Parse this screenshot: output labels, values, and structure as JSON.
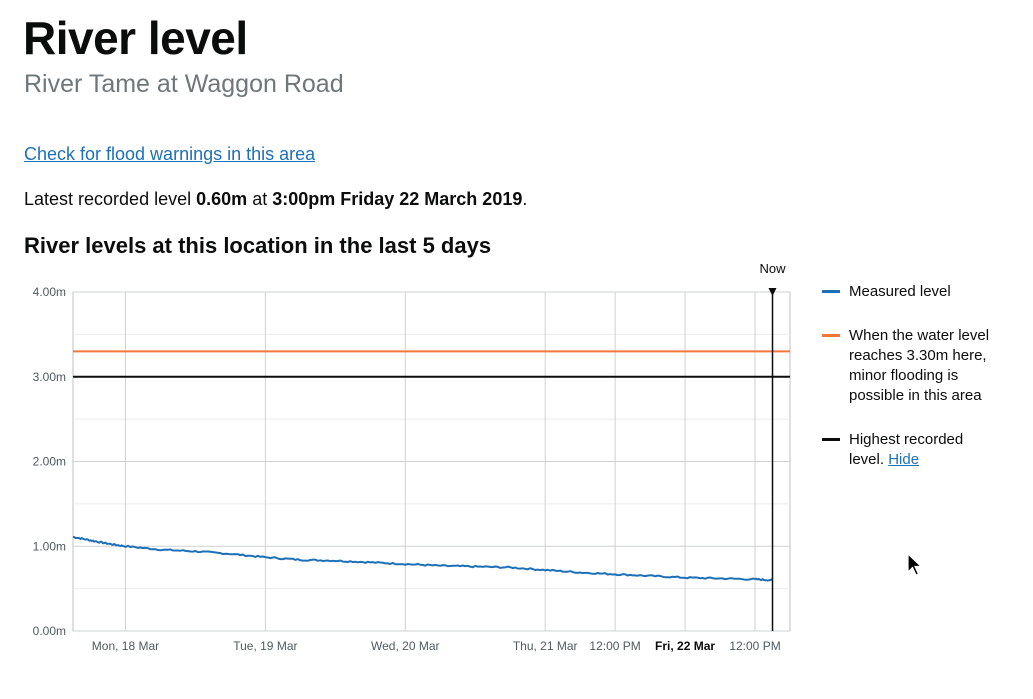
{
  "page": {
    "title": "River level",
    "subtitle": "River Tame at Waggon Road",
    "flood_warnings_link": "Check for flood warnings in this area",
    "latest": {
      "prefix": "Latest recorded level",
      "value": "0.60m",
      "mid": "at",
      "time": "3:00pm Friday 22 March 2019",
      "suffix": "."
    },
    "chart_heading": "River levels at this location in the last 5 days"
  },
  "legend": {
    "measured": "Measured level",
    "threshold": "When the water level reaches 3.30m here, minor flooding is possible in this area",
    "highest": "Highest recorded level.",
    "hide_link": "Hide"
  },
  "colors": {
    "measured": "#1d70b8",
    "threshold": "#f47738",
    "highest": "#0b0c0c",
    "link": "#1d70b8"
  },
  "chart_data": {
    "type": "line",
    "title": "River levels at this location in the last 5 days",
    "y_range": [
      0,
      4
    ],
    "y_ticks": [
      {
        "value": 0,
        "label": "0.00m"
      },
      {
        "value": 1,
        "label": "1.00m"
      },
      {
        "value": 2,
        "label": "2.00m"
      },
      {
        "value": 3,
        "label": "3.00m"
      },
      {
        "value": 4,
        "label": "4.00m"
      }
    ],
    "x_range": [
      "2019-03-17T15:00",
      "2019-03-22T18:00"
    ],
    "x_ticks": [
      {
        "value": "2019-03-18T00:00",
        "label": "Mon, 18 Mar",
        "bold": false
      },
      {
        "value": "2019-03-19T00:00",
        "label": "Tue, 19 Mar",
        "bold": false
      },
      {
        "value": "2019-03-20T00:00",
        "label": "Wed, 20 Mar",
        "bold": false
      },
      {
        "value": "2019-03-21T00:00",
        "label": "Thu, 21 Mar",
        "bold": false
      },
      {
        "value": "2019-03-21T12:00",
        "label": "12:00 PM",
        "bold": false
      },
      {
        "value": "2019-03-22T00:00",
        "label": "Fri, 22 Mar",
        "bold": true
      },
      {
        "value": "2019-03-22T12:00",
        "label": "12:00 PM",
        "bold": false
      }
    ],
    "now": {
      "value": "2019-03-22T15:00",
      "label": "Now"
    },
    "reference_lines": [
      {
        "name": "threshold",
        "value": 3.3
      },
      {
        "name": "highest",
        "value": 3.0
      }
    ],
    "grid": true,
    "series": [
      {
        "name": "Measured level",
        "points": [
          {
            "x": "2019-03-17T15:00",
            "y": 1.11
          },
          {
            "x": "2019-03-17T18:00",
            "y": 1.07
          },
          {
            "x": "2019-03-17T21:00",
            "y": 1.03
          },
          {
            "x": "2019-03-18T00:00",
            "y": 1.0
          },
          {
            "x": "2019-03-18T06:00",
            "y": 0.96
          },
          {
            "x": "2019-03-18T12:00",
            "y": 0.94
          },
          {
            "x": "2019-03-18T18:00",
            "y": 0.91
          },
          {
            "x": "2019-03-19T00:00",
            "y": 0.87
          },
          {
            "x": "2019-03-19T06:00",
            "y": 0.84
          },
          {
            "x": "2019-03-19T12:00",
            "y": 0.83
          },
          {
            "x": "2019-03-19T18:00",
            "y": 0.81
          },
          {
            "x": "2019-03-20T00:00",
            "y": 0.79
          },
          {
            "x": "2019-03-20T06:00",
            "y": 0.77
          },
          {
            "x": "2019-03-20T12:00",
            "y": 0.76
          },
          {
            "x": "2019-03-20T18:00",
            "y": 0.75
          },
          {
            "x": "2019-03-21T00:00",
            "y": 0.72
          },
          {
            "x": "2019-03-21T06:00",
            "y": 0.69
          },
          {
            "x": "2019-03-21T12:00",
            "y": 0.67
          },
          {
            "x": "2019-03-21T18:00",
            "y": 0.65
          },
          {
            "x": "2019-03-22T00:00",
            "y": 0.63
          },
          {
            "x": "2019-03-22T06:00",
            "y": 0.62
          },
          {
            "x": "2019-03-22T12:00",
            "y": 0.61
          },
          {
            "x": "2019-03-22T15:00",
            "y": 0.6
          }
        ]
      }
    ]
  }
}
